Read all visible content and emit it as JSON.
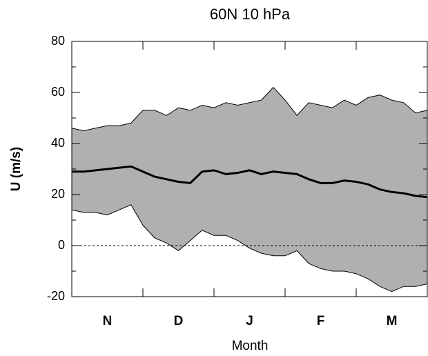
{
  "chart_data": {
    "type": "band",
    "title": "60N 10 hPa",
    "xlabel": "Month",
    "ylabel": "U (m/s)",
    "categories": [
      "N",
      "D",
      "J",
      "F",
      "M"
    ],
    "x": [
      0,
      5,
      10,
      15,
      20,
      25,
      30,
      35,
      40,
      45,
      50,
      55,
      60,
      65,
      70,
      75,
      80,
      85,
      90,
      95,
      100,
      105,
      110,
      115,
      120,
      125,
      130,
      135,
      140,
      145,
      150
    ],
    "xlim": [
      0,
      150
    ],
    "xticks": [
      0,
      30,
      60,
      90,
      120,
      150
    ],
    "band": {
      "color": "#b0b0b0",
      "upper": [
        46,
        45,
        46,
        47,
        47,
        48,
        53,
        53,
        51,
        54,
        53,
        55,
        54,
        56,
        55,
        56,
        57,
        62,
        57,
        51,
        56,
        55,
        54,
        57,
        55,
        58,
        59,
        57,
        56,
        52,
        53
      ],
      "lower": [
        14,
        13,
        13,
        12,
        14,
        16,
        8,
        3,
        1,
        -2,
        2,
        6,
        4,
        4,
        2,
        -1,
        -3,
        -4,
        -4,
        -2,
        -7,
        -9,
        -10,
        -10,
        -11,
        -13,
        -16,
        -18,
        -16,
        -16,
        -15
      ]
    },
    "mean": {
      "color": "#000000",
      "values": [
        29,
        29,
        29.5,
        30,
        30.5,
        31,
        29,
        27,
        26,
        25,
        24.5,
        29,
        29.5,
        28,
        28.5,
        29.5,
        28,
        29,
        28.5,
        28,
        26,
        24.5,
        24.5,
        25.5,
        25,
        24,
        22,
        21,
        20.5,
        19.5,
        19
      ]
    },
    "ylim": [
      -20,
      80
    ],
    "yticks": [
      -20,
      0,
      20,
      40,
      60,
      80
    ],
    "yminor_ticks": [
      -10,
      10,
      30,
      50,
      70
    ],
    "zero_line": true
  }
}
